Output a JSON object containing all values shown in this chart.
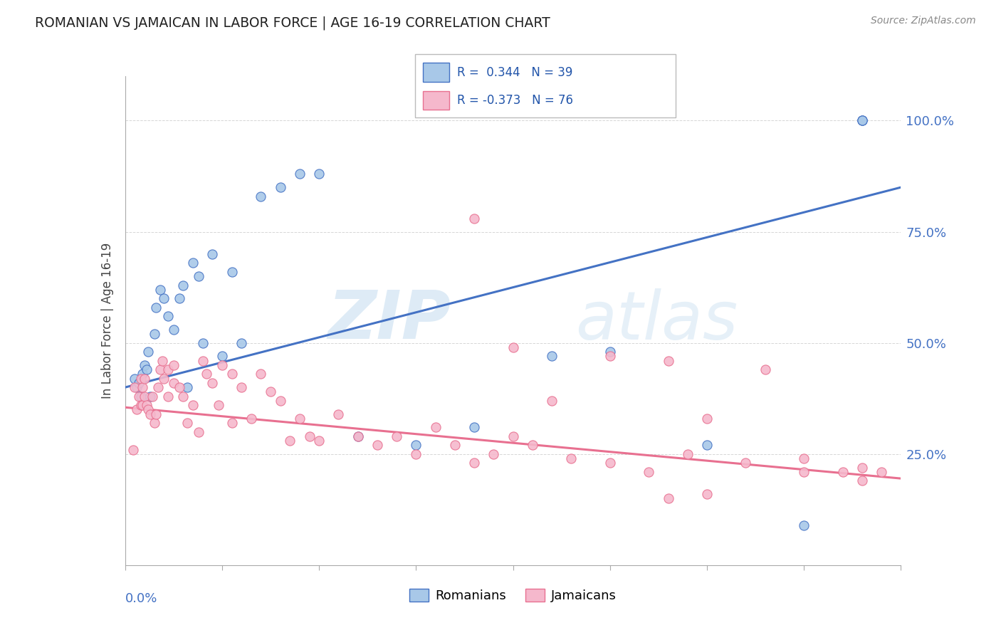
{
  "title": "ROMANIAN VS JAMAICAN IN LABOR FORCE | AGE 16-19 CORRELATION CHART",
  "source": "Source: ZipAtlas.com",
  "ylabel": "In Labor Force | Age 16-19",
  "xlim": [
    0.0,
    0.4
  ],
  "ylim": [
    0.0,
    1.1
  ],
  "romanian_color": "#a8c8e8",
  "jamaican_color": "#f5b8cc",
  "romanian_line_color": "#4472c4",
  "jamaican_line_color": "#e87090",
  "R_romanian": 0.344,
  "N_romanian": 39,
  "R_jamaican": -0.373,
  "N_jamaican": 76,
  "watermark_zip": "ZIP",
  "watermark_atlas": "atlas",
  "rom_line_x0": 0.0,
  "rom_line_y0": 0.4,
  "rom_line_x1": 0.4,
  "rom_line_y1": 0.85,
  "jam_line_x0": 0.0,
  "jam_line_y0": 0.355,
  "jam_line_x1": 0.4,
  "jam_line_y1": 0.195,
  "romanians_x": [
    0.005,
    0.006,
    0.007,
    0.008,
    0.009,
    0.01,
    0.011,
    0.012,
    0.013,
    0.015,
    0.016,
    0.018,
    0.02,
    0.022,
    0.025,
    0.028,
    0.03,
    0.032,
    0.035,
    0.038,
    0.04,
    0.045,
    0.05,
    0.055,
    0.06,
    0.07,
    0.08,
    0.09,
    0.1,
    0.12,
    0.15,
    0.18,
    0.22,
    0.25,
    0.3,
    0.35,
    0.38,
    0.38,
    0.38
  ],
  "romanians_y": [
    0.42,
    0.4,
    0.41,
    0.38,
    0.43,
    0.45,
    0.44,
    0.48,
    0.38,
    0.52,
    0.58,
    0.62,
    0.6,
    0.56,
    0.53,
    0.6,
    0.63,
    0.4,
    0.68,
    0.65,
    0.5,
    0.7,
    0.47,
    0.66,
    0.5,
    0.83,
    0.85,
    0.88,
    0.88,
    0.29,
    0.27,
    0.31,
    0.47,
    0.48,
    0.27,
    0.09,
    1.0,
    1.0,
    1.0
  ],
  "jamaicans_x": [
    0.004,
    0.005,
    0.006,
    0.007,
    0.008,
    0.008,
    0.009,
    0.009,
    0.01,
    0.01,
    0.011,
    0.012,
    0.013,
    0.014,
    0.015,
    0.016,
    0.017,
    0.018,
    0.019,
    0.02,
    0.022,
    0.022,
    0.025,
    0.025,
    0.028,
    0.03,
    0.032,
    0.035,
    0.038,
    0.04,
    0.042,
    0.045,
    0.048,
    0.05,
    0.055,
    0.055,
    0.06,
    0.065,
    0.07,
    0.075,
    0.08,
    0.085,
    0.09,
    0.095,
    0.1,
    0.11,
    0.12,
    0.13,
    0.14,
    0.15,
    0.16,
    0.17,
    0.18,
    0.19,
    0.2,
    0.21,
    0.22,
    0.23,
    0.25,
    0.27,
    0.29,
    0.3,
    0.32,
    0.35,
    0.37,
    0.38,
    0.39,
    0.18,
    0.2,
    0.25,
    0.28,
    0.33,
    0.28,
    0.3,
    0.35,
    0.38
  ],
  "jamaicans_y": [
    0.26,
    0.4,
    0.35,
    0.38,
    0.42,
    0.36,
    0.36,
    0.4,
    0.42,
    0.38,
    0.36,
    0.35,
    0.34,
    0.38,
    0.32,
    0.34,
    0.4,
    0.44,
    0.46,
    0.42,
    0.38,
    0.44,
    0.45,
    0.41,
    0.4,
    0.38,
    0.32,
    0.36,
    0.3,
    0.46,
    0.43,
    0.41,
    0.36,
    0.45,
    0.43,
    0.32,
    0.4,
    0.33,
    0.43,
    0.39,
    0.37,
    0.28,
    0.33,
    0.29,
    0.28,
    0.34,
    0.29,
    0.27,
    0.29,
    0.25,
    0.31,
    0.27,
    0.23,
    0.25,
    0.29,
    0.27,
    0.37,
    0.24,
    0.23,
    0.21,
    0.25,
    0.33,
    0.23,
    0.21,
    0.21,
    0.19,
    0.21,
    0.78,
    0.49,
    0.47,
    0.46,
    0.44,
    0.15,
    0.16,
    0.24,
    0.22
  ]
}
